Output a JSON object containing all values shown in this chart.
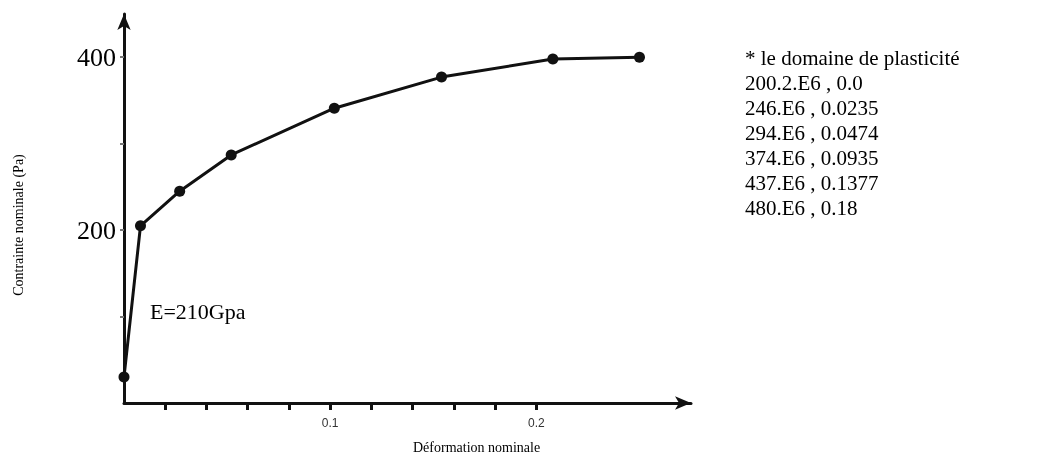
{
  "chart_data": {
    "type": "line",
    "xlabel": "Déformation nominale",
    "ylabel": "Contrainte nominale (Pa)",
    "series": [
      {
        "color": "#111111",
        "marker": "circle",
        "x": [
          0,
          0.008,
          0.027,
          0.052,
          0.102,
          0.154,
          0.208,
          0.25
        ],
        "values": [
          30,
          205,
          245,
          287,
          341,
          377,
          398,
          400
        ]
      }
    ],
    "xlim": [
      0,
      0.275
    ],
    "xticks": [
      {
        "value": 0.02,
        "label": null
      },
      {
        "value": 0.04,
        "label": null
      },
      {
        "value": 0.06,
        "label": null
      },
      {
        "value": 0.08,
        "label": null
      },
      0.1,
      {
        "value": 0.12,
        "label": null
      },
      {
        "value": 0.14,
        "label": null
      },
      {
        "value": 0.16,
        "label": null
      },
      {
        "value": 0.18,
        "label": null
      },
      0.2
    ],
    "ylim": [
      0,
      450
    ],
    "yticks": [
      {
        "value": 100,
        "label": null
      },
      200,
      {
        "value": 300,
        "label": null
      },
      400
    ],
    "grid": false,
    "annotations": [
      "E=210Gpa",
      "* le domaine de plasticité",
      "200.2.E6 , 0.0",
      "246.E6 , 0.0235",
      "294.E6 , 0.0474",
      "374.E6 , 0.0935",
      "437.E6 , 0.1377",
      "480.E6 , 0.18"
    ]
  }
}
